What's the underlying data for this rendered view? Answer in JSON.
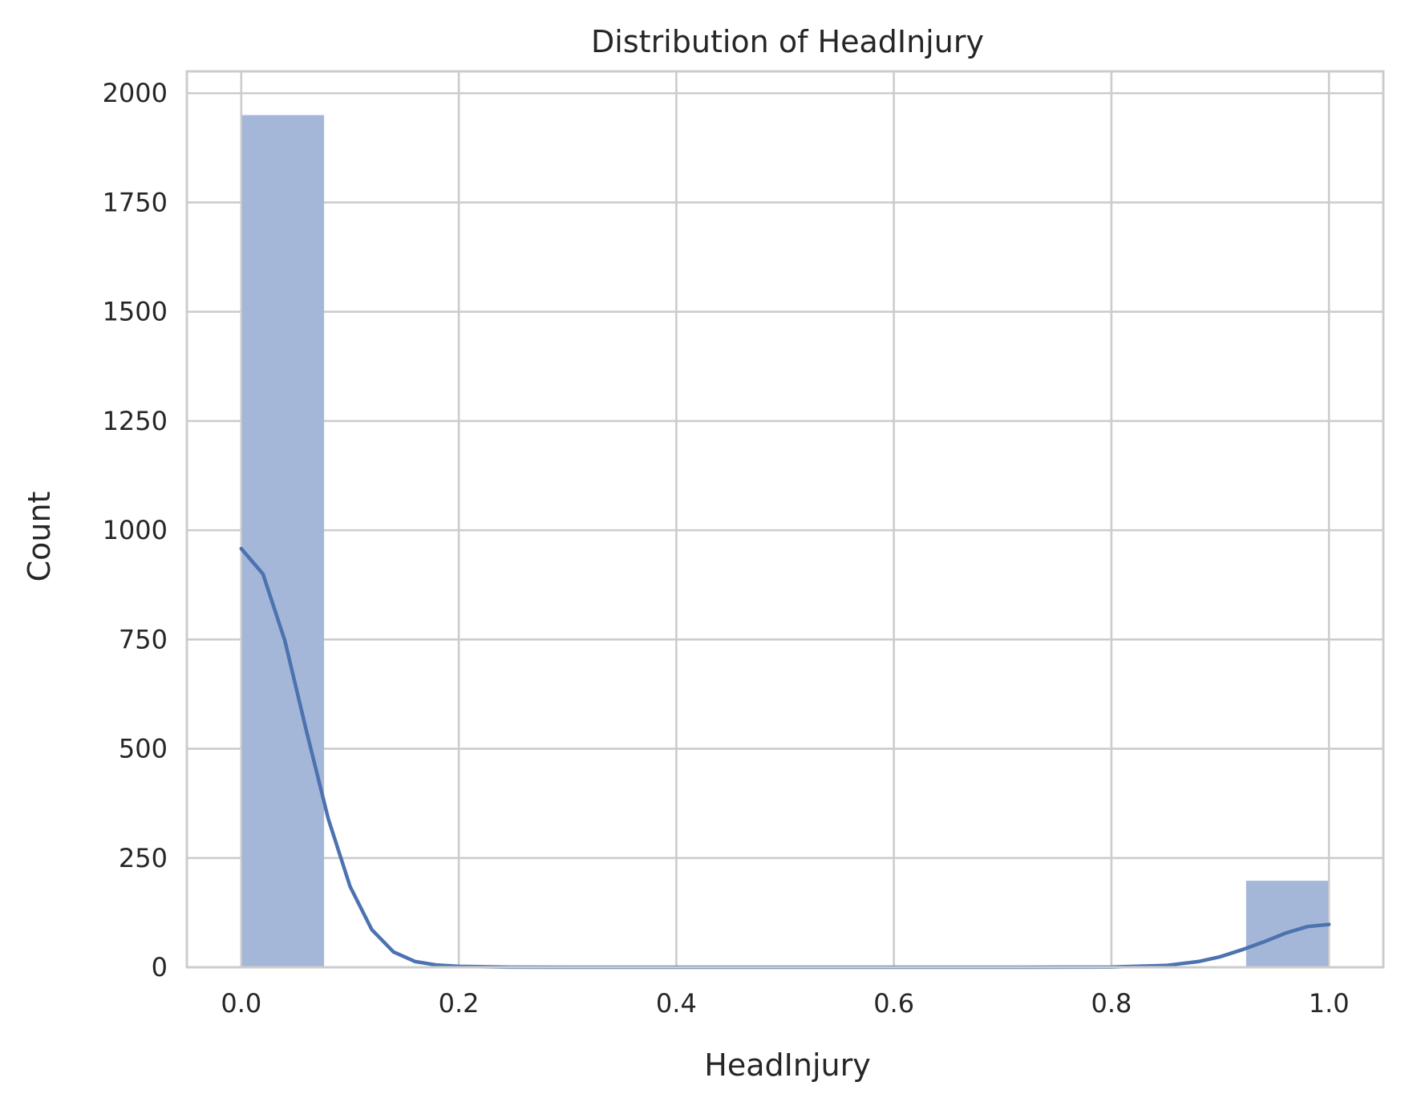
{
  "chart_data": {
    "type": "bar",
    "title": "Distribution of HeadInjury",
    "xlabel": "HeadInjury",
    "ylabel": "Count",
    "xlim": [
      -0.05,
      1.05
    ],
    "ylim": [
      0,
      2050
    ],
    "x_ticks": [
      0.0,
      0.2,
      0.4,
      0.6,
      0.8,
      1.0
    ],
    "x_tick_labels": [
      "0.0",
      "0.2",
      "0.4",
      "0.6",
      "0.8",
      "1.0"
    ],
    "y_ticks": [
      0,
      250,
      500,
      750,
      1000,
      1250,
      1500,
      1750,
      2000
    ],
    "y_tick_labels": [
      "0",
      "250",
      "500",
      "750",
      "1000",
      "1250",
      "1500",
      "1750",
      "2000"
    ],
    "grid": true,
    "bars": [
      {
        "x_start": 0.0,
        "x_end": 0.0769,
        "count": 1950
      },
      {
        "x_start": 0.9231,
        "x_end": 1.0,
        "count": 198
      }
    ],
    "kde": {
      "x": [
        0.0,
        0.02,
        0.04,
        0.06,
        0.08,
        0.1,
        0.12,
        0.14,
        0.16,
        0.18,
        0.2,
        0.25,
        0.3,
        0.4,
        0.5,
        0.6,
        0.7,
        0.8,
        0.85,
        0.88,
        0.9,
        0.92,
        0.94,
        0.96,
        0.98,
        1.0
      ],
      "y": [
        958,
        900,
        748,
        540,
        340,
        185,
        86,
        35,
        13,
        5,
        2,
        0.2,
        0,
        0,
        0,
        0,
        0,
        0.5,
        4,
        13,
        24,
        40,
        58,
        78,
        93,
        98
      ]
    },
    "colors": {
      "bar": "#a4b7d8",
      "kde": "#4c72b0",
      "grid": "#cccccc"
    }
  }
}
